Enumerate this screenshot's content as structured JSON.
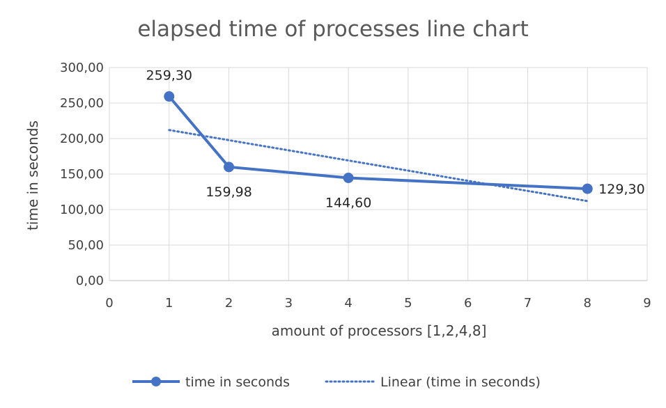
{
  "chart_data": {
    "type": "line",
    "title": "elapsed time of processes line chart",
    "xlabel": "amount of processors [1,2,4,8]",
    "ylabel": "time in seconds",
    "xlim": [
      0,
      9
    ],
    "ylim": [
      0,
      300
    ],
    "x_ticks": [
      "0",
      "1",
      "2",
      "3",
      "4",
      "5",
      "6",
      "7",
      "8",
      "9"
    ],
    "y_ticks": [
      "0,00",
      "50,00",
      "100,00",
      "150,00",
      "200,00",
      "250,00",
      "300,00"
    ],
    "grid": true,
    "legend_position": "bottom",
    "series": [
      {
        "name": "time in seconds",
        "x": [
          1,
          2,
          4,
          8
        ],
        "y": [
          259.3,
          159.98,
          144.6,
          129.3
        ],
        "data_labels": [
          "259,30",
          "159,98",
          "144,60",
          "129,30"
        ],
        "color": "#4472C4",
        "marker": "circle",
        "style": "solid"
      },
      {
        "name": "Linear (time in seconds)",
        "x": [
          1,
          8
        ],
        "y": [
          212,
          112
        ],
        "color": "#4472C4",
        "style": "dotted"
      }
    ]
  }
}
